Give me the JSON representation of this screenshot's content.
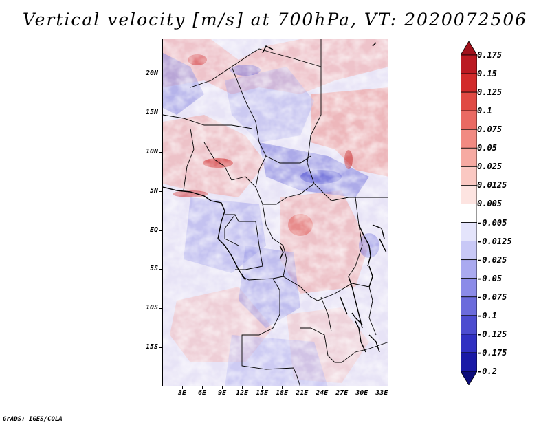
{
  "title": "Vertical velocity [m/s] at 700hPa, VT: 2020072506",
  "credit": "GrADS: IGES/COLA",
  "map": {
    "lon_range": [
      0,
      34
    ],
    "lat_range": [
      -20,
      24.5
    ],
    "lat_ticks": [
      {
        "label": "20N",
        "lat": 20
      },
      {
        "label": "15N",
        "lat": 15
      },
      {
        "label": "10N",
        "lat": 10
      },
      {
        "label": "5N",
        "lat": 5
      },
      {
        "label": "EQ",
        "lat": 0
      },
      {
        "label": "5S",
        "lat": -5
      },
      {
        "label": "10S",
        "lat": -10
      },
      {
        "label": "15S",
        "lat": -15
      }
    ],
    "lon_ticks": [
      {
        "label": "3E",
        "lon": 3
      },
      {
        "label": "6E",
        "lon": 6
      },
      {
        "label": "9E",
        "lon": 9
      },
      {
        "label": "12E",
        "lon": 12
      },
      {
        "label": "15E",
        "lon": 15
      },
      {
        "label": "18E",
        "lon": 18
      },
      {
        "label": "21E",
        "lon": 21
      },
      {
        "label": "24E",
        "lon": 24
      },
      {
        "label": "27E",
        "lon": 27
      },
      {
        "label": "30E",
        "lon": 30
      },
      {
        "label": "33E",
        "lon": 33
      }
    ]
  },
  "colorbar": {
    "labels": [
      "0.175",
      "0.15",
      "0.125",
      "0.1",
      "0.075",
      "0.05",
      "0.025",
      "0.0125",
      "0.005",
      "-0.005",
      "-0.0125",
      "-0.025",
      "-0.05",
      "-0.075",
      "-0.1",
      "-0.125",
      "-0.175",
      "-0.2"
    ],
    "colors": [
      "#a0121b",
      "#bb1a22",
      "#d22b2b",
      "#e04a43",
      "#ea6a63",
      "#f18a82",
      "#f6aaa2",
      "#fac8c2",
      "#fde4e1",
      "#ffffff",
      "#e4e4fb",
      "#c8c8f6",
      "#aaaaf0",
      "#8b8be8",
      "#6b6bdc",
      "#4c4cd0",
      "#3030c2",
      "#1a1aa6",
      "#0c0c7a"
    ]
  }
}
